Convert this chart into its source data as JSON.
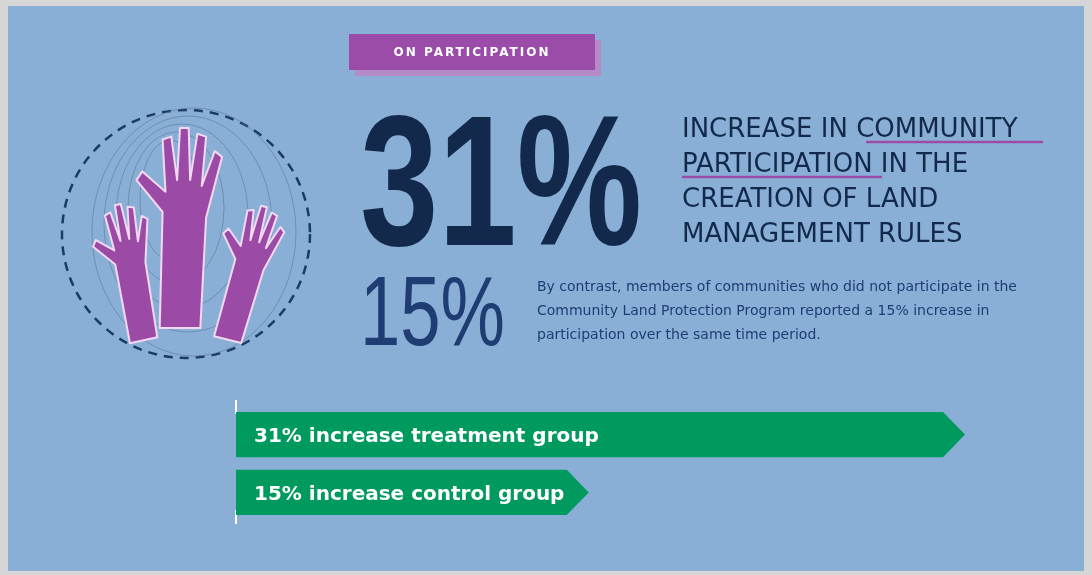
{
  "chart_data": {
    "type": "bar",
    "orientation": "horizontal",
    "title": "ON PARTICIPATION",
    "annotations": [
      "31%",
      "INCREASE IN COMMUNITY PARTICIPATION IN THE CREATION OF LAND MANAGEMENT RULES",
      "15%",
      "By contrast, members of communities who did not participate in the Community Land Protection Program reported a 15% increase in participation over the same time period."
    ],
    "categories": [
      null,
      null
    ],
    "values": [
      31,
      15
    ],
    "color": "#009a5e",
    "value_labels": [
      "31% increase treatment group",
      "15% increase control group"
    ],
    "xlim": [
      0,
      31
    ]
  }
}
